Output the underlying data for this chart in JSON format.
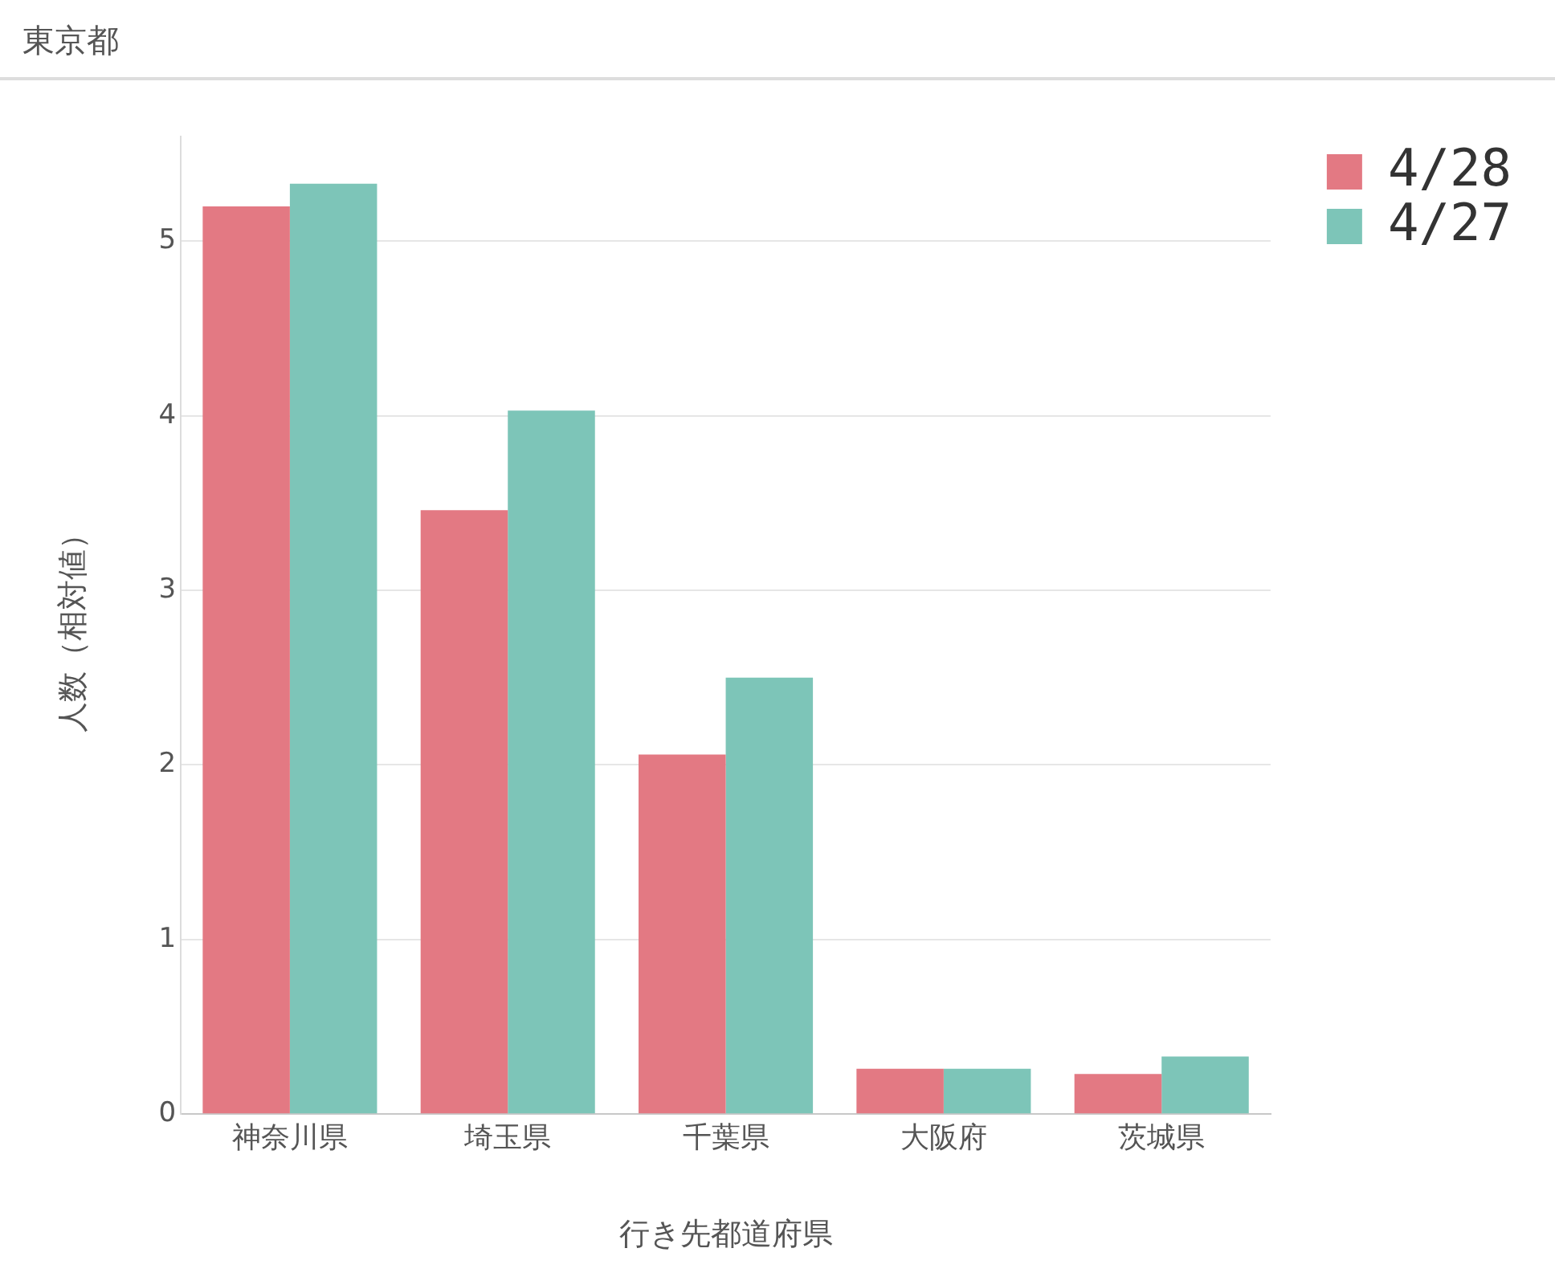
{
  "chart_data": {
    "type": "bar",
    "title": "東京都",
    "xlabel": "行き先都道府県",
    "ylabel": "人数（相対値）",
    "categories": [
      "神奈川県",
      "埼玉県",
      "千葉県",
      "大阪府",
      "茨城県"
    ],
    "series": [
      {
        "name": "4/28",
        "color": "#e37983",
        "values": [
          5.2,
          3.46,
          2.06,
          0.26,
          0.23
        ]
      },
      {
        "name": "4/27",
        "color": "#7dc5b8",
        "values": [
          5.33,
          4.03,
          2.5,
          0.26,
          0.33
        ]
      }
    ],
    "ylim": [
      0,
      5.6
    ],
    "yticks": [
      0,
      1,
      2,
      3,
      4,
      5
    ],
    "grid": "y",
    "legend": "top right"
  }
}
